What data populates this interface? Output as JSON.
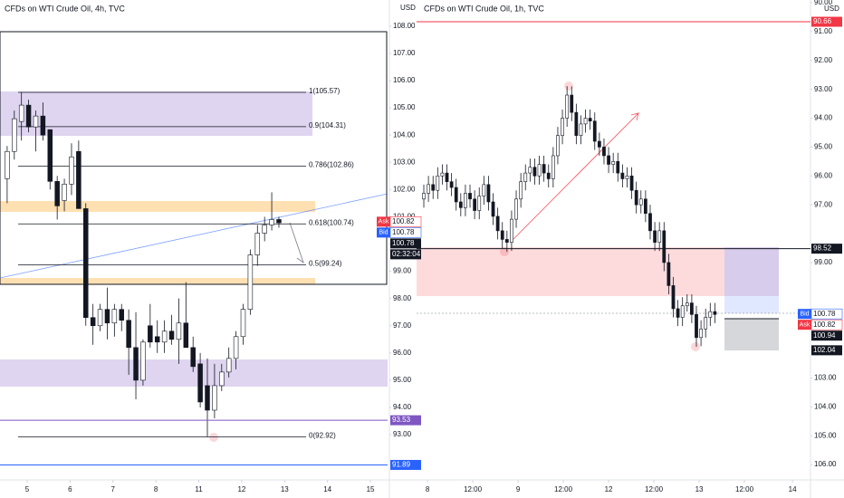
{
  "chart_data": [
    {
      "type": "candlestick",
      "title": "CFDs on WTI Crude Oil, 4h, TVC",
      "currency": "USD",
      "inverted": false,
      "grid": false,
      "up_color": "#ffffff",
      "down_color": "#131722",
      "ohlc": [
        [
          102.4,
          103.6,
          101.5,
          103.4
        ],
        [
          103.4,
          104.9,
          103.1,
          104.6
        ],
        [
          104.5,
          105.57,
          103.8,
          105.1
        ],
        [
          105.1,
          105.3,
          104.1,
          104.3
        ],
        [
          104.3,
          104.9,
          103.4,
          104.7
        ],
        [
          104.7,
          105.2,
          103.8,
          104.0
        ],
        [
          104.2,
          104.2,
          102.0,
          102.3
        ],
        [
          102.3,
          102.5,
          100.9,
          101.4
        ],
        [
          101.6,
          102.4,
          101.2,
          102.2
        ],
        [
          102.2,
          103.7,
          101.8,
          103.2
        ],
        [
          103.4,
          103.8,
          101.3,
          101.3
        ],
        [
          101.3,
          101.5,
          97.0,
          97.3
        ],
        [
          97.3,
          97.8,
          96.3,
          97.0
        ],
        [
          97.0,
          97.8,
          96.8,
          97.6
        ],
        [
          97.6,
          98.4,
          96.5,
          97.1
        ],
        [
          97.1,
          97.8,
          96.6,
          97.6
        ],
        [
          97.6,
          97.8,
          96.8,
          97.2
        ],
        [
          97.2,
          97.6,
          95.2,
          96.2
        ],
        [
          96.2,
          97.5,
          94.3,
          95.0
        ],
        [
          95.0,
          96.5,
          94.8,
          96.4
        ],
        [
          97.0,
          97.8,
          96.2,
          96.4
        ],
        [
          96.6,
          97.2,
          96.0,
          96.4
        ],
        [
          96.4,
          97.2,
          96.0,
          96.8
        ],
        [
          96.8,
          97.4,
          96.3,
          96.5
        ],
        [
          96.5,
          98.0,
          95.6,
          97.1
        ],
        [
          97.1,
          98.6,
          96.2,
          96.2
        ],
        [
          96.2,
          96.6,
          95.3,
          95.5
        ],
        [
          95.6,
          96.0,
          94.0,
          94.2
        ],
        [
          94.8,
          95.8,
          92.92,
          93.9
        ],
        [
          93.9,
          95.6,
          93.6,
          94.8
        ],
        [
          94.8,
          95.6,
          94.6,
          95.3
        ],
        [
          95.3,
          96.2,
          95.1,
          95.8
        ],
        [
          95.8,
          96.8,
          95.4,
          96.6
        ],
        [
          96.6,
          97.8,
          96.3,
          97.6
        ],
        [
          97.6,
          99.8,
          97.4,
          99.6
        ],
        [
          99.6,
          100.7,
          99.2,
          100.4
        ],
        [
          100.4,
          101.0,
          100.1,
          100.7
        ],
        [
          100.7,
          101.9,
          100.5,
          100.9
        ],
        [
          100.9,
          101.0,
          100.6,
          100.78
        ]
      ],
      "xlim": [
        -1,
        53.2
      ],
      "xticks": [
        {
          "value": 2.8,
          "label": "5"
        },
        {
          "value": 8.8,
          "label": "6"
        },
        {
          "value": 14.8,
          "label": "7"
        },
        {
          "value": 20.8,
          "label": "8"
        },
        {
          "value": 26.8,
          "label": "11"
        },
        {
          "value": 32.8,
          "label": "12"
        },
        {
          "value": 38.8,
          "label": "13"
        },
        {
          "value": 44.8,
          "label": "14"
        },
        {
          "value": 50.8,
          "label": "15"
        }
      ],
      "ylim": [
        91.34,
        108.96
      ],
      "yticks": [
        {
          "value": 93,
          "label": "93.00"
        },
        {
          "value": 94,
          "label": "94.00"
        },
        {
          "value": 95,
          "label": "95.00"
        },
        {
          "value": 96,
          "label": "96.00"
        },
        {
          "value": 97,
          "label": "97.00"
        },
        {
          "value": 98,
          "label": "98.00"
        },
        {
          "value": 99,
          "label": "99.00"
        },
        {
          "value": 100,
          "label": "100.00"
        },
        {
          "value": 101,
          "label": "101.00"
        },
        {
          "value": 102,
          "label": "102.00"
        },
        {
          "value": 103,
          "label": "103.00"
        },
        {
          "value": 104,
          "label": "104.00"
        },
        {
          "value": 105,
          "label": "105.00"
        },
        {
          "value": 106,
          "label": "106.00"
        },
        {
          "value": 107,
          "label": "107.00"
        },
        {
          "value": 108,
          "label": "108.00"
        }
      ],
      "levels": [
        {
          "value": 105.57,
          "label": "1(105.57)"
        },
        {
          "value": 104.31,
          "label": "0.9(104.31)"
        },
        {
          "value": 102.86,
          "label": "0.786(102.86)"
        },
        {
          "value": 100.74,
          "label": "0.618(100.74)"
        },
        {
          "value": 99.24,
          "label": "0.5(99.24)"
        },
        {
          "value": 92.92,
          "label": "0(92.92)"
        }
      ],
      "price_tags": [
        {
          "tag": "Ask",
          "value": 100.82,
          "label": "100.82",
          "color": "#f23645"
        },
        {
          "tag": "Bid",
          "value": 100.78,
          "label": "100.78",
          "color": "#2962ff"
        },
        {
          "value": 100.78,
          "label": "100.78",
          "color": "#131722"
        },
        {
          "label": "02:32:04",
          "color": "#131722"
        },
        {
          "value": 93.53,
          "label": "93.53",
          "color": "#7e57c2",
          "line": true
        },
        {
          "value": 91.89,
          "label": "91.89",
          "color": "#2962ff",
          "line": true
        }
      ]
    },
    {
      "type": "candlestick",
      "title": "CFDs on WTI Crude Oil, 1h, TVC",
      "currency": "USD",
      "inverted": true,
      "grid": false,
      "up_color": "#ffffff",
      "down_color": "#131722",
      "ohlc": [
        [
          96.8,
          97.1,
          96.3,
          96.6
        ],
        [
          96.6,
          96.9,
          96.0,
          96.3
        ],
        [
          96.3,
          96.8,
          96.0,
          96.5
        ],
        [
          96.5,
          96.8,
          95.7,
          96.0
        ],
        [
          96.0,
          96.3,
          95.6,
          95.9
        ],
        [
          95.9,
          96.5,
          95.6,
          96.2
        ],
        [
          96.2,
          96.7,
          95.9,
          96.4
        ],
        [
          96.4,
          97.2,
          96.1,
          96.9
        ],
        [
          96.9,
          97.4,
          96.6,
          97.1
        ],
        [
          97.1,
          97.4,
          96.3,
          96.6
        ],
        [
          96.6,
          97.1,
          96.3,
          96.8
        ],
        [
          96.8,
          97.5,
          96.5,
          97.2
        ],
        [
          97.2,
          97.5,
          96.4,
          96.7
        ],
        [
          96.7,
          97.0,
          96.0,
          96.3
        ],
        [
          96.3,
          97.2,
          96.0,
          96.9
        ],
        [
          96.9,
          97.7,
          96.6,
          97.4
        ],
        [
          97.4,
          98.2,
          97.1,
          97.9
        ],
        [
          97.9,
          98.5,
          97.6,
          98.2
        ],
        [
          98.2,
          98.63,
          97.9,
          98.3
        ],
        [
          98.3,
          98.6,
          97.2,
          97.5
        ],
        [
          97.5,
          97.8,
          96.5,
          96.8
        ],
        [
          96.8,
          97.1,
          95.9,
          96.2
        ],
        [
          96.2,
          96.5,
          95.6,
          95.9
        ],
        [
          95.9,
          96.2,
          95.4,
          95.7
        ],
        [
          95.7,
          96.3,
          95.4,
          96.0
        ],
        [
          96.0,
          96.3,
          95.3,
          95.6
        ],
        [
          95.6,
          96.2,
          95.3,
          95.9
        ],
        [
          95.9,
          96.4,
          95.6,
          96.1
        ],
        [
          96.1,
          96.4,
          95.0,
          95.3
        ],
        [
          95.3,
          95.6,
          94.3,
          94.6
        ],
        [
          94.6,
          94.9,
          93.7,
          94.0
        ],
        [
          94.0,
          94.3,
          92.89,
          93.2
        ],
        [
          93.2,
          94.1,
          92.9,
          93.8
        ],
        [
          93.8,
          94.9,
          93.5,
          94.6
        ],
        [
          94.6,
          94.9,
          93.9,
          94.2
        ],
        [
          94.2,
          94.5,
          93.7,
          94.0
        ],
        [
          94.0,
          94.4,
          93.7,
          94.1
        ],
        [
          94.1,
          95.1,
          93.8,
          94.8
        ],
        [
          94.8,
          95.3,
          94.5,
          95.0
        ],
        [
          95.0,
          95.6,
          94.7,
          95.3
        ],
        [
          95.3,
          95.9,
          95.0,
          95.6
        ],
        [
          95.6,
          95.9,
          95.2,
          95.5
        ],
        [
          95.5,
          96.2,
          95.2,
          95.9
        ],
        [
          95.9,
          96.4,
          95.6,
          96.1
        ],
        [
          96.1,
          96.4,
          95.7,
          96.0
        ],
        [
          96.0,
          96.8,
          95.7,
          96.5
        ],
        [
          96.5,
          97.3,
          96.2,
          97.0
        ],
        [
          97.0,
          97.3,
          96.5,
          96.8
        ],
        [
          96.8,
          97.6,
          96.5,
          97.3
        ],
        [
          97.3,
          98.2,
          97.0,
          97.9
        ],
        [
          97.9,
          98.6,
          97.6,
          98.3
        ],
        [
          98.3,
          98.6,
          97.6,
          97.9
        ],
        [
          97.9,
          99.3,
          97.6,
          99.0
        ],
        [
          99.0,
          100.1,
          98.7,
          99.8
        ],
        [
          99.8,
          100.9,
          99.5,
          100.6
        ],
        [
          100.6,
          101.2,
          100.3,
          100.9
        ],
        [
          100.9,
          101.2,
          100.2,
          100.5
        ],
        [
          100.5,
          100.7,
          100.1,
          100.4
        ],
        [
          100.4,
          101.1,
          100.1,
          100.8
        ],
        [
          100.8,
          101.92,
          100.5,
          101.6
        ],
        [
          101.6,
          101.9,
          101.0,
          101.3
        ],
        [
          101.3,
          101.6,
          100.6,
          100.9
        ],
        [
          100.9,
          101.2,
          100.4,
          100.7
        ],
        [
          100.7,
          101.1,
          100.4,
          100.8
        ]
      ],
      "xlim": [
        -1.57,
        83.7
      ],
      "xticks": [
        {
          "value": 0.8,
          "label": "8"
        },
        {
          "value": 10.6,
          "label": "12:00"
        },
        {
          "value": 20.4,
          "label": "9"
        },
        {
          "value": 30.2,
          "label": "12:00"
        },
        {
          "value": 40.0,
          "label": "12"
        },
        {
          "value": 49.8,
          "label": "12:00"
        },
        {
          "value": 59.6,
          "label": "13"
        },
        {
          "value": 69.4,
          "label": "12:00"
        },
        {
          "value": 79.8,
          "label": "14"
        }
      ],
      "ylim": [
        89.906,
        106.53
      ],
      "yticks": [
        {
          "value": 90,
          "label": "90.00"
        },
        {
          "value": 91,
          "label": "91.00"
        },
        {
          "value": 92,
          "label": "92.00"
        },
        {
          "value": 93,
          "label": "93.00"
        },
        {
          "value": 94,
          "label": "94.00"
        },
        {
          "value": 95,
          "label": "95.00"
        },
        {
          "value": 96,
          "label": "96.00"
        },
        {
          "value": 97,
          "label": "97.00"
        },
        {
          "value": 99,
          "label": "99.00"
        },
        {
          "value": 103,
          "label": "103.00"
        },
        {
          "value": 104,
          "label": "104.00"
        },
        {
          "value": 105,
          "label": "105.00"
        },
        {
          "value": 106,
          "label": "106.00"
        }
      ],
      "levels": [],
      "price_tags": [
        {
          "value": 90.66,
          "label": "90.66",
          "color": "#f23645",
          "line": true
        },
        {
          "value": 98.52,
          "label": "98.52",
          "color": "#131722",
          "line": true
        },
        {
          "tag": "Bid",
          "value": 100.78,
          "label": "100.78",
          "color": "#2962ff"
        },
        {
          "tag": "Ask",
          "value": 100.82,
          "label": "100.82",
          "color": "#f23645"
        },
        {
          "value": 100.94,
          "label": "100.94",
          "color": "#131722"
        },
        {
          "value": 102.04,
          "label": "102.04",
          "color": "#131722"
        }
      ]
    }
  ]
}
